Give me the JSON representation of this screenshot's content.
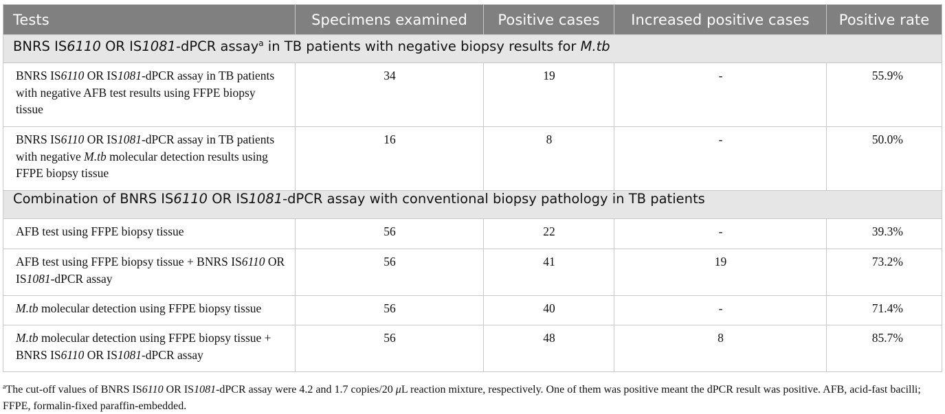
{
  "table": {
    "headers": [
      "Tests",
      "Specimens examined",
      "Positive cases",
      "Increased positive cases",
      "Positive rate"
    ],
    "sections": [
      {
        "title_parts": [
          "BNRS IS",
          "6110",
          " OR IS",
          "1081",
          "-dPCR assay",
          "a",
          " in TB patients with negative biopsy results for ",
          "M.tb"
        ],
        "rows": [
          {
            "label_parts": [
              "BNRS IS",
              "6110",
              " OR IS",
              "1081",
              "-dPCR assay in TB patients with negative AFB test results using FFPE biopsy tissue"
            ],
            "specimens": "34",
            "positive": "19",
            "increased": "-",
            "rate": "55.9%"
          },
          {
            "label_parts": [
              "BNRS IS",
              "6110",
              " OR IS",
              "1081",
              "-dPCR assay in TB patients with negative ",
              "M.tb",
              " molecular detection results using FFPE biopsy tissue"
            ],
            "specimens": "16",
            "positive": "8",
            "increased": "-",
            "rate": "50.0%"
          }
        ]
      },
      {
        "title_parts": [
          "Combination of BNRS IS",
          "6110",
          " OR IS",
          "1081",
          "-dPCR assay with conventional biopsy pathology in TB patients"
        ],
        "rows": [
          {
            "label_parts": [
              "AFB test using FFPE biopsy tissue"
            ],
            "specimens": "56",
            "positive": "22",
            "increased": "-",
            "rate": "39.3%"
          },
          {
            "label_parts": [
              "AFB test using FFPE biopsy tissue + BNRS IS",
              "6110",
              " OR IS",
              "1081",
              "-dPCR assay"
            ],
            "specimens": "56",
            "positive": "41",
            "increased": "19",
            "rate": "73.2%"
          },
          {
            "label_parts": [
              "M.tb",
              " molecular detection using FFPE biopsy tissue"
            ],
            "specimens": "56",
            "positive": "40",
            "increased": "-",
            "rate": "71.4%"
          },
          {
            "label_parts": [
              "M.tb",
              " molecular detection using FFPE biopsy tissue + BNRS IS",
              "6110",
              " OR IS",
              "1081",
              "-dPCR assay"
            ],
            "specimens": "56",
            "positive": "48",
            "increased": "8",
            "rate": "85.7%"
          }
        ]
      }
    ]
  },
  "footnote": {
    "marker": "a",
    "parts": [
      "The cut-off values of BNRS IS",
      "6110",
      " OR IS",
      "1081",
      "-dPCR assay were 4.2 and 1.7 copies/20 ",
      "μ",
      "L reaction mixture, respectively. One of them was positive meant the dPCR result was positive. AFB, acid-fast bacilli; FFPE, formalin-fixed paraffin-embedded."
    ]
  }
}
